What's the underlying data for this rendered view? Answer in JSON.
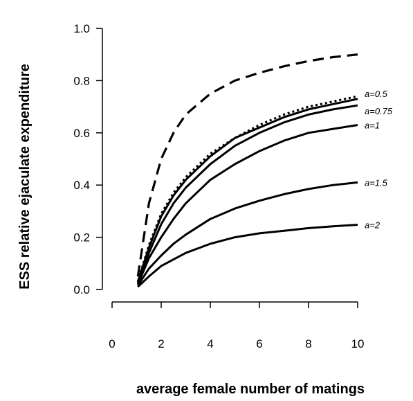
{
  "chart_data": {
    "type": "line",
    "title": "",
    "xlabel": "average female number of matings",
    "ylabel": "ESS relative ejaculate expenditure",
    "xlim": [
      0,
      10
    ],
    "ylim": [
      0,
      1
    ],
    "x_ticks": [
      "0",
      "2",
      "4",
      "6",
      "8",
      "10"
    ],
    "y_ticks": [
      "0.0",
      "0.2",
      "0.4",
      "0.6",
      "0.8",
      "1.0"
    ],
    "grid": false,
    "legend": "none",
    "series": [
      {
        "style": "dashed",
        "x": [
          1.05,
          1.5,
          2,
          2.5,
          3,
          4,
          5,
          6,
          7,
          8,
          9,
          10
        ],
        "y": [
          0.05,
          0.33,
          0.5,
          0.6,
          0.67,
          0.75,
          0.8,
          0.83,
          0.855,
          0.875,
          0.89,
          0.9
        ]
      },
      {
        "style": "dotted",
        "x": [
          1.05,
          1.5,
          2,
          2.5,
          3,
          4,
          5,
          6,
          7,
          8,
          9,
          10
        ],
        "y": [
          0.03,
          0.17,
          0.29,
          0.37,
          0.43,
          0.52,
          0.58,
          0.63,
          0.67,
          0.7,
          0.72,
          0.74
        ]
      },
      {
        "name": "a=0.5",
        "style": "solid",
        "x": [
          1.05,
          1.5,
          2,
          2.5,
          3,
          4,
          5,
          6,
          7,
          8,
          9,
          10
        ],
        "y": [
          0.03,
          0.16,
          0.28,
          0.36,
          0.42,
          0.51,
          0.58,
          0.62,
          0.66,
          0.69,
          0.71,
          0.73
        ]
      },
      {
        "name": "a=0.75",
        "style": "solid",
        "x": [
          1.05,
          1.5,
          2,
          2.5,
          3,
          4,
          5,
          6,
          7,
          8,
          9,
          10
        ],
        "y": [
          0.025,
          0.14,
          0.25,
          0.33,
          0.39,
          0.48,
          0.55,
          0.6,
          0.64,
          0.67,
          0.69,
          0.705
        ]
      },
      {
        "name": "a=1",
        "style": "solid",
        "x": [
          1.05,
          1.5,
          2,
          2.5,
          3,
          4,
          5,
          6,
          7,
          8,
          9,
          10
        ],
        "y": [
          0.02,
          0.12,
          0.2,
          0.27,
          0.33,
          0.42,
          0.48,
          0.53,
          0.57,
          0.6,
          0.615,
          0.63
        ]
      },
      {
        "name": "a=1.5",
        "style": "solid",
        "x": [
          1.05,
          1.5,
          2,
          2.5,
          3,
          4,
          5,
          6,
          7,
          8,
          9,
          10
        ],
        "y": [
          0.015,
          0.08,
          0.13,
          0.175,
          0.21,
          0.27,
          0.31,
          0.34,
          0.365,
          0.385,
          0.4,
          0.41
        ]
      },
      {
        "name": "a=2",
        "style": "solid",
        "x": [
          1.05,
          1.5,
          2,
          2.5,
          3,
          4,
          5,
          6,
          7,
          8,
          9,
          10
        ],
        "y": [
          0.01,
          0.05,
          0.09,
          0.115,
          0.14,
          0.175,
          0.2,
          0.215,
          0.225,
          0.235,
          0.242,
          0.248
        ]
      }
    ]
  }
}
